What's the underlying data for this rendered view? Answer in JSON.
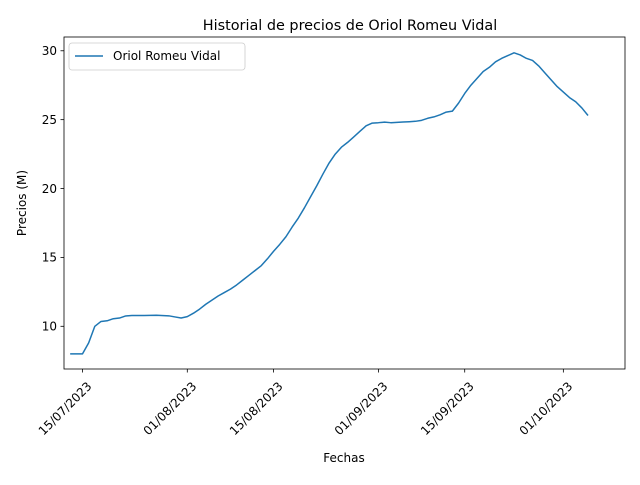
{
  "chart_data": {
    "type": "line",
    "title": "Historial de precios de Oriol Romeu Vidal",
    "xlabel": "Fechas",
    "ylabel": "Precios (M)",
    "x_type": "date",
    "xlim": [
      "2023-07-12",
      "2023-10-11"
    ],
    "ylim": [
      6.9,
      31.0
    ],
    "xticks": [
      {
        "value": "2023-07-15",
        "label": "15/07/2023"
      },
      {
        "value": "2023-08-01",
        "label": "01/08/2023"
      },
      {
        "value": "2023-08-15",
        "label": "15/08/2023"
      },
      {
        "value": "2023-09-01",
        "label": "01/09/2023"
      },
      {
        "value": "2023-09-15",
        "label": "15/09/2023"
      },
      {
        "value": "2023-10-01",
        "label": "01/10/2023"
      }
    ],
    "yticks": [
      10,
      15,
      20,
      25,
      30
    ],
    "grid": false,
    "legend": {
      "position": "upper-left"
    },
    "color": "#1f77b4",
    "series": [
      {
        "name": "Oriol Romeu Vidal",
        "points": [
          [
            "2023-07-13",
            8.0
          ],
          [
            "2023-07-14",
            8.0
          ],
          [
            "2023-07-15",
            8.0
          ],
          [
            "2023-07-16",
            8.8
          ],
          [
            "2023-07-17",
            10.0
          ],
          [
            "2023-07-18",
            10.35
          ],
          [
            "2023-07-19",
            10.4
          ],
          [
            "2023-07-20",
            10.55
          ],
          [
            "2023-07-21",
            10.6
          ],
          [
            "2023-07-22",
            10.75
          ],
          [
            "2023-07-23",
            10.78
          ],
          [
            "2023-07-25",
            10.78
          ],
          [
            "2023-07-27",
            10.8
          ],
          [
            "2023-07-29",
            10.76
          ],
          [
            "2023-07-30",
            10.68
          ],
          [
            "2023-07-31",
            10.6
          ],
          [
            "2023-08-01",
            10.7
          ],
          [
            "2023-08-02",
            10.95
          ],
          [
            "2023-08-03",
            11.25
          ],
          [
            "2023-08-04",
            11.6
          ],
          [
            "2023-08-05",
            11.9
          ],
          [
            "2023-08-06",
            12.2
          ],
          [
            "2023-08-07",
            12.45
          ],
          [
            "2023-08-08",
            12.7
          ],
          [
            "2023-08-09",
            13.0
          ],
          [
            "2023-08-10",
            13.35
          ],
          [
            "2023-08-11",
            13.7
          ],
          [
            "2023-08-12",
            14.05
          ],
          [
            "2023-08-13",
            14.4
          ],
          [
            "2023-08-14",
            14.9
          ],
          [
            "2023-08-15",
            15.45
          ],
          [
            "2023-08-16",
            15.95
          ],
          [
            "2023-08-17",
            16.5
          ],
          [
            "2023-08-18",
            17.2
          ],
          [
            "2023-08-19",
            17.85
          ],
          [
            "2023-08-20",
            18.6
          ],
          [
            "2023-08-21",
            19.4
          ],
          [
            "2023-08-22",
            20.2
          ],
          [
            "2023-08-23",
            21.05
          ],
          [
            "2023-08-24",
            21.85
          ],
          [
            "2023-08-25",
            22.5
          ],
          [
            "2023-08-26",
            23.0
          ],
          [
            "2023-08-27",
            23.35
          ],
          [
            "2023-08-28",
            23.75
          ],
          [
            "2023-08-29",
            24.15
          ],
          [
            "2023-08-30",
            24.55
          ],
          [
            "2023-08-31",
            24.75
          ],
          [
            "2023-09-01",
            24.78
          ],
          [
            "2023-09-02",
            24.82
          ],
          [
            "2023-09-03",
            24.78
          ],
          [
            "2023-09-04",
            24.8
          ],
          [
            "2023-09-05",
            24.83
          ],
          [
            "2023-09-06",
            24.85
          ],
          [
            "2023-09-07",
            24.88
          ],
          [
            "2023-09-08",
            24.95
          ],
          [
            "2023-09-09",
            25.1
          ],
          [
            "2023-09-10",
            25.2
          ],
          [
            "2023-09-11",
            25.35
          ],
          [
            "2023-09-12",
            25.55
          ],
          [
            "2023-09-13",
            25.62
          ],
          [
            "2023-09-14",
            26.2
          ],
          [
            "2023-09-15",
            26.9
          ],
          [
            "2023-09-16",
            27.5
          ],
          [
            "2023-09-17",
            28.0
          ],
          [
            "2023-09-18",
            28.5
          ],
          [
            "2023-09-19",
            28.8
          ],
          [
            "2023-09-20",
            29.2
          ],
          [
            "2023-09-21",
            29.45
          ],
          [
            "2023-09-22",
            29.65
          ],
          [
            "2023-09-23",
            29.85
          ],
          [
            "2023-09-24",
            29.7
          ],
          [
            "2023-09-25",
            29.45
          ],
          [
            "2023-09-26",
            29.3
          ],
          [
            "2023-09-27",
            28.9
          ],
          [
            "2023-09-28",
            28.4
          ],
          [
            "2023-09-29",
            27.9
          ],
          [
            "2023-09-30",
            27.4
          ],
          [
            "2023-10-01",
            27.0
          ],
          [
            "2023-10-02",
            26.6
          ],
          [
            "2023-10-03",
            26.3
          ],
          [
            "2023-10-04",
            25.85
          ],
          [
            "2023-10-05",
            25.3
          ]
        ]
      }
    ]
  }
}
